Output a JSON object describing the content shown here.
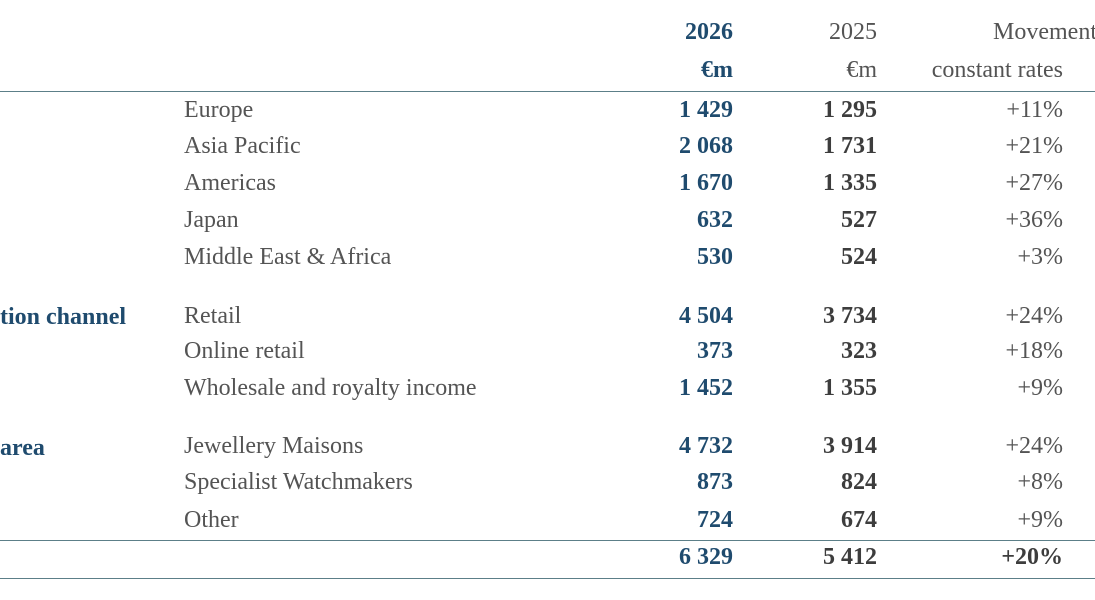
{
  "header": {
    "year_current": "2026",
    "year_prior": "2025",
    "movement_label": "Movement at",
    "unit_current": "€m",
    "unit_prior": "€m",
    "movement_sub": "constant rates"
  },
  "rows": [
    {
      "category": "",
      "label": "Europe",
      "current": "1 429",
      "prior": "1 295",
      "movement": "+11%"
    },
    {
      "category": "",
      "label": "Asia Pacific",
      "current": "2 068",
      "prior": "1 731",
      "movement": "+21%"
    },
    {
      "category": "",
      "label": "Americas",
      "current": "1 670",
      "prior": "1 335",
      "movement": "+27%"
    },
    {
      "category": "",
      "label": "Japan",
      "current": "632",
      "prior": "527",
      "movement": "+36%"
    },
    {
      "category": "",
      "label": "Middle East & Africa",
      "current": "530",
      "prior": "524",
      "movement": "+3%"
    },
    {
      "category": "tion channel",
      "label": "Retail",
      "current": "4 504",
      "prior": "3 734",
      "movement": "+24%"
    },
    {
      "category": "",
      "label": "Online retail",
      "current": "373",
      "prior": "323",
      "movement": "+18%"
    },
    {
      "category": "",
      "label": "Wholesale and royalty income",
      "current": "1 452",
      "prior": "1 355",
      "movement": "+9%"
    },
    {
      "category": "area",
      "label": "Jewellery Maisons",
      "current": "4 732",
      "prior": "3 914",
      "movement": "+24%"
    },
    {
      "category": "",
      "label": "Specialist Watchmakers",
      "current": "873",
      "prior": "824",
      "movement": "+8%"
    },
    {
      "category": "",
      "label": "Other",
      "current": "724",
      "prior": "674",
      "movement": "+9%"
    }
  ],
  "total": {
    "current": "6 329",
    "prior": "5 412",
    "movement": "+20%"
  },
  "colors": {
    "accent": "#1f4b6e",
    "text": "#545454",
    "rule": "#5c7f88"
  }
}
